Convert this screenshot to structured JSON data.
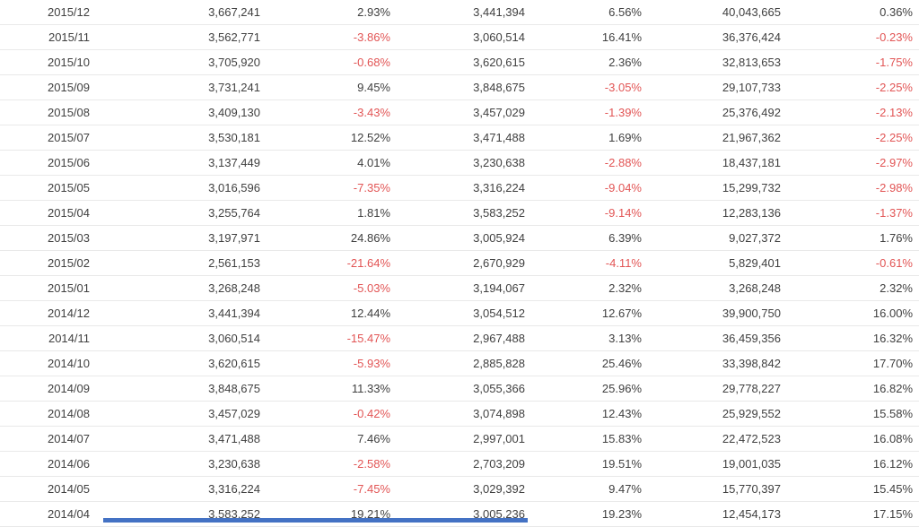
{
  "colors": {
    "background": "#ffffff",
    "text": "#404040",
    "negative": "#e25555",
    "row_border": "#e9e9e9",
    "blue_bar": "#4472c4"
  },
  "chart_data": {
    "type": "table",
    "grid": "horizontal-row-separators",
    "field_names": [
      "month",
      "value",
      "mom-pct",
      "prev-year-value",
      "yoy-pct",
      "cumulative",
      "cumulative-yoy-pct"
    ],
    "rows": [
      [
        "2015/12",
        "3,667,241",
        "2.93%",
        "3,441,394",
        "6.56%",
        "40,043,665",
        "0.36%"
      ],
      [
        "2015/11",
        "3,562,771",
        "-3.86%",
        "3,060,514",
        "16.41%",
        "36,376,424",
        "-0.23%"
      ],
      [
        "2015/10",
        "3,705,920",
        "-0.68%",
        "3,620,615",
        "2.36%",
        "32,813,653",
        "-1.75%"
      ],
      [
        "2015/09",
        "3,731,241",
        "9.45%",
        "3,848,675",
        "-3.05%",
        "29,107,733",
        "-2.25%"
      ],
      [
        "2015/08",
        "3,409,130",
        "-3.43%",
        "3,457,029",
        "-1.39%",
        "25,376,492",
        "-2.13%"
      ],
      [
        "2015/07",
        "3,530,181",
        "12.52%",
        "3,471,488",
        "1.69%",
        "21,967,362",
        "-2.25%"
      ],
      [
        "2015/06",
        "3,137,449",
        "4.01%",
        "3,230,638",
        "-2.88%",
        "18,437,181",
        "-2.97%"
      ],
      [
        "2015/05",
        "3,016,596",
        "-7.35%",
        "3,316,224",
        "-9.04%",
        "15,299,732",
        "-2.98%"
      ],
      [
        "2015/04",
        "3,255,764",
        "1.81%",
        "3,583,252",
        "-9.14%",
        "12,283,136",
        "-1.37%"
      ],
      [
        "2015/03",
        "3,197,971",
        "24.86%",
        "3,005,924",
        "6.39%",
        "9,027,372",
        "1.76%"
      ],
      [
        "2015/02",
        "2,561,153",
        "-21.64%",
        "2,670,929",
        "-4.11%",
        "5,829,401",
        "-0.61%"
      ],
      [
        "2015/01",
        "3,268,248",
        "-5.03%",
        "3,194,067",
        "2.32%",
        "3,268,248",
        "2.32%"
      ],
      [
        "2014/12",
        "3,441,394",
        "12.44%",
        "3,054,512",
        "12.67%",
        "39,900,750",
        "16.00%"
      ],
      [
        "2014/11",
        "3,060,514",
        "-15.47%",
        "2,967,488",
        "3.13%",
        "36,459,356",
        "16.32%"
      ],
      [
        "2014/10",
        "3,620,615",
        "-5.93%",
        "2,885,828",
        "25.46%",
        "33,398,842",
        "17.70%"
      ],
      [
        "2014/09",
        "3,848,675",
        "11.33%",
        "3,055,366",
        "25.96%",
        "29,778,227",
        "16.82%"
      ],
      [
        "2014/08",
        "3,457,029",
        "-0.42%",
        "3,074,898",
        "12.43%",
        "25,929,552",
        "15.58%"
      ],
      [
        "2014/07",
        "3,471,488",
        "7.46%",
        "2,997,001",
        "15.83%",
        "22,472,523",
        "16.08%"
      ],
      [
        "2014/06",
        "3,230,638",
        "-2.58%",
        "2,703,209",
        "19.51%",
        "19,001,035",
        "16.12%"
      ],
      [
        "2014/05",
        "3,316,224",
        "-7.45%",
        "3,029,392",
        "9.47%",
        "15,770,397",
        "15.45%"
      ],
      [
        "2014/04",
        "3,583,252",
        "19.21%",
        "3,005,236",
        "19.23%",
        "12,454,173",
        "17.15%"
      ]
    ]
  }
}
